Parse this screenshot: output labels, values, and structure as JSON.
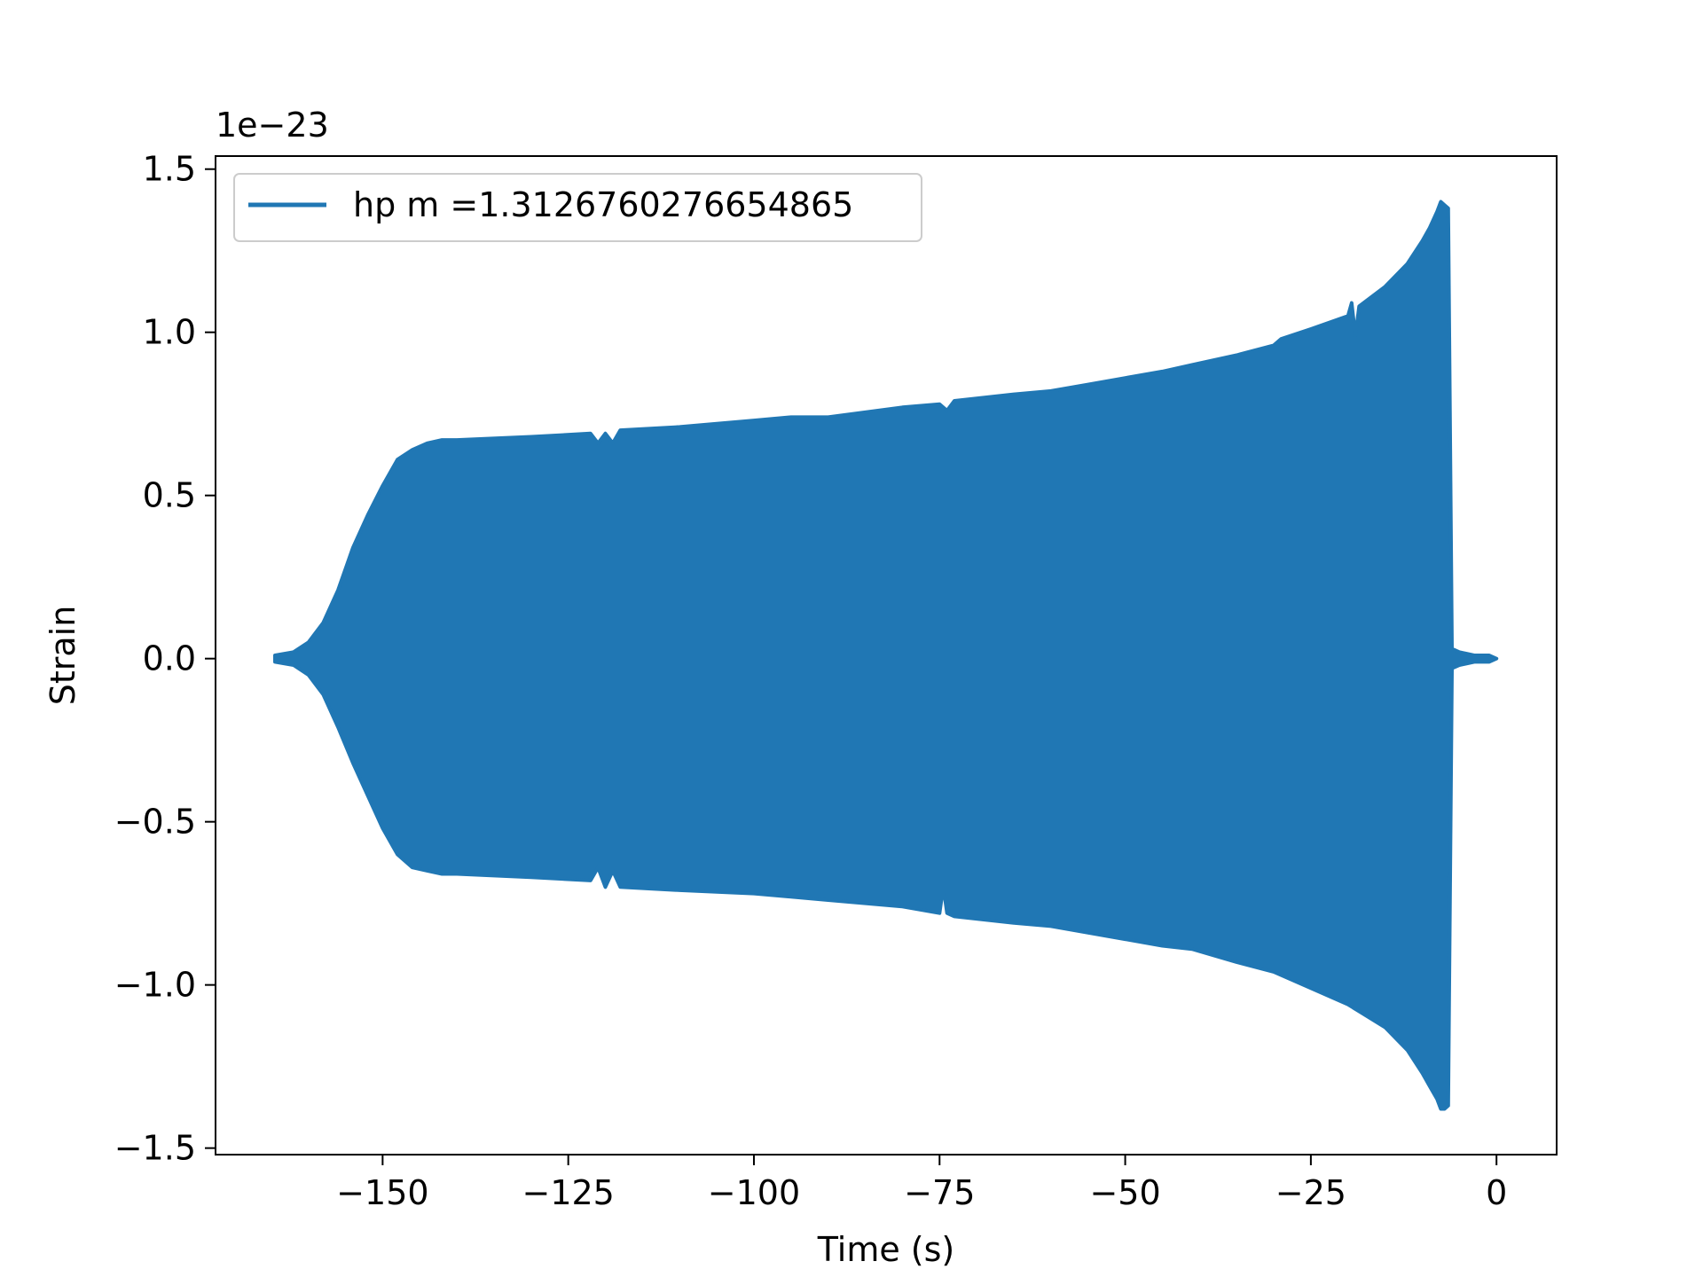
{
  "chart_data": {
    "type": "line",
    "title": "",
    "xlabel": "Time (s)",
    "ylabel": "Strain",
    "y_offset_label": "1e−23",
    "xlim": [
      -172.5,
      8.1
    ],
    "ylim": [
      -1.52,
      1.54
    ],
    "y_scale_factor": "1e-23",
    "grid": false,
    "legend": {
      "position": "top-left",
      "entries": [
        "hp m =1.3126760276654865"
      ]
    },
    "x_ticks": [
      {
        "value": -150,
        "label": "−150"
      },
      {
        "value": -125,
        "label": "−125"
      },
      {
        "value": -100,
        "label": "−100"
      },
      {
        "value": -75,
        "label": "−75"
      },
      {
        "value": -50,
        "label": "−50"
      },
      {
        "value": -25,
        "label": "−25"
      },
      {
        "value": 0,
        "label": "0"
      }
    ],
    "y_ticks": [
      {
        "value": 1.5,
        "label": "1.5"
      },
      {
        "value": 1.0,
        "label": "1.0"
      },
      {
        "value": 0.5,
        "label": "0.5"
      },
      {
        "value": 0.0,
        "label": "0.0"
      },
      {
        "value": -0.5,
        "label": "−0.5"
      },
      {
        "value": -1.0,
        "label": "−1.0"
      },
      {
        "value": -1.5,
        "label": "−1.5"
      }
    ],
    "series": [
      {
        "name": "hp m =1.3126760276654865",
        "color": "#2077b4",
        "rendering": "dense oscillation envelope",
        "envelope_upper": [
          [
            -164.5,
            0.01
          ],
          [
            -162,
            0.02
          ],
          [
            -160,
            0.05
          ],
          [
            -158,
            0.11
          ],
          [
            -156,
            0.21
          ],
          [
            -154,
            0.34
          ],
          [
            -152,
            0.44
          ],
          [
            -150,
            0.53
          ],
          [
            -148,
            0.61
          ],
          [
            -146,
            0.64
          ],
          [
            -144,
            0.66
          ],
          [
            -142,
            0.67
          ],
          [
            -140,
            0.67
          ],
          [
            -130,
            0.68
          ],
          [
            -122,
            0.69
          ],
          [
            -121,
            0.66
          ],
          [
            -120,
            0.69
          ],
          [
            -119,
            0.66
          ],
          [
            -118,
            0.7
          ],
          [
            -110,
            0.71
          ],
          [
            -100,
            0.73
          ],
          [
            -95,
            0.74
          ],
          [
            -90,
            0.74
          ],
          [
            -80,
            0.77
          ],
          [
            -75,
            0.78
          ],
          [
            -74,
            0.76
          ],
          [
            -73,
            0.79
          ],
          [
            -65,
            0.81
          ],
          [
            -60,
            0.82
          ],
          [
            -55,
            0.84
          ],
          [
            -50,
            0.86
          ],
          [
            -45,
            0.88
          ],
          [
            -41,
            0.9
          ],
          [
            -35,
            0.93
          ],
          [
            -30,
            0.96
          ],
          [
            -29,
            0.98
          ],
          [
            -25,
            1.01
          ],
          [
            -20,
            1.05
          ],
          [
            -19.5,
            1.09
          ],
          [
            -19,
            0.99
          ],
          [
            -18.5,
            1.08
          ],
          [
            -15,
            1.14
          ],
          [
            -12,
            1.21
          ],
          [
            -10,
            1.28
          ],
          [
            -9,
            1.32
          ],
          [
            -8,
            1.37
          ],
          [
            -7.5,
            1.4
          ],
          [
            -7,
            1.39
          ],
          [
            -6.5,
            1.38
          ],
          [
            -6,
            0.03
          ],
          [
            -5,
            0.02
          ],
          [
            -3,
            0.01
          ],
          [
            -1,
            0.01
          ],
          [
            0,
            0.0
          ]
        ],
        "envelope_lower": [
          [
            -164.5,
            -0.01
          ],
          [
            -162,
            -0.02
          ],
          [
            -160,
            -0.05
          ],
          [
            -158,
            -0.11
          ],
          [
            -156,
            -0.21
          ],
          [
            -154,
            -0.32
          ],
          [
            -152,
            -0.42
          ],
          [
            -150,
            -0.52
          ],
          [
            -148,
            -0.6
          ],
          [
            -146,
            -0.64
          ],
          [
            -144,
            -0.65
          ],
          [
            -142,
            -0.66
          ],
          [
            -140,
            -0.66
          ],
          [
            -130,
            -0.67
          ],
          [
            -122,
            -0.68
          ],
          [
            -121,
            -0.64
          ],
          [
            -120,
            -0.7
          ],
          [
            -119,
            -0.65
          ],
          [
            -118,
            -0.7
          ],
          [
            -110,
            -0.71
          ],
          [
            -100,
            -0.72
          ],
          [
            -95,
            -0.73
          ],
          [
            -90,
            -0.74
          ],
          [
            -80,
            -0.76
          ],
          [
            -75,
            -0.78
          ],
          [
            -74.5,
            -0.7
          ],
          [
            -74,
            -0.78
          ],
          [
            -73,
            -0.79
          ],
          [
            -65,
            -0.81
          ],
          [
            -60,
            -0.82
          ],
          [
            -55,
            -0.84
          ],
          [
            -50,
            -0.86
          ],
          [
            -45,
            -0.88
          ],
          [
            -41,
            -0.89
          ],
          [
            -35,
            -0.93
          ],
          [
            -30,
            -0.96
          ],
          [
            -25,
            -1.01
          ],
          [
            -20,
            -1.06
          ],
          [
            -15,
            -1.13
          ],
          [
            -12,
            -1.2
          ],
          [
            -10,
            -1.27
          ],
          [
            -9,
            -1.31
          ],
          [
            -8,
            -1.35
          ],
          [
            -7.5,
            -1.38
          ],
          [
            -7,
            -1.38
          ],
          [
            -6.5,
            -1.37
          ],
          [
            -6,
            -0.03
          ],
          [
            -5,
            -0.02
          ],
          [
            -3,
            -0.01
          ],
          [
            -1,
            -0.01
          ],
          [
            0,
            0.0
          ]
        ]
      }
    ]
  }
}
